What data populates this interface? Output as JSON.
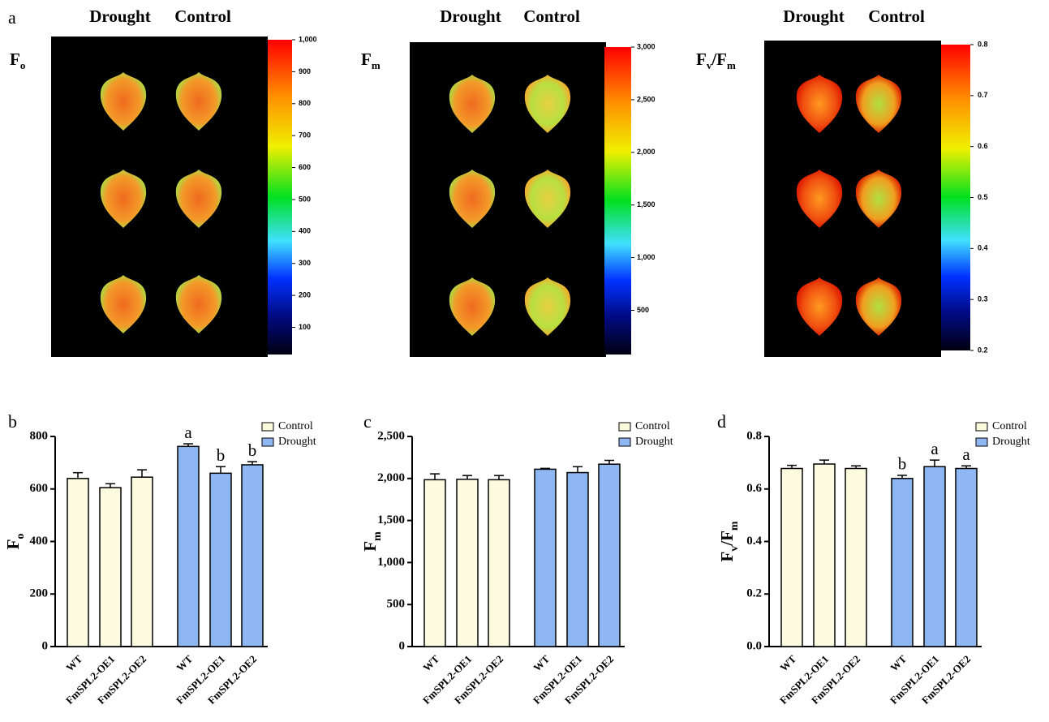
{
  "panel_label": "a",
  "images": [
    {
      "label": [
        "F",
        "o"
      ],
      "columns": [
        "Drought",
        "Control"
      ],
      "colorbar": {
        "lim": [
          15,
          1000
        ],
        "ticks": [
          100,
          200,
          300,
          400,
          500,
          600,
          700,
          800,
          900,
          {
            "value": 1000,
            "label": "1,000"
          }
        ]
      }
    },
    {
      "label": [
        "F",
        "m"
      ],
      "columns": [
        "Drought",
        "Control"
      ],
      "colorbar": {
        "lim": [
          80,
          3000
        ],
        "ticks": [
          500,
          {
            "value": 1000,
            "label": "1,000"
          },
          {
            "value": 1500,
            "label": "1,500"
          },
          {
            "value": 2000,
            "label": "2,000"
          },
          {
            "value": 2500,
            "label": "2,500"
          },
          {
            "value": 3000,
            "label": "3,000"
          }
        ]
      }
    },
    {
      "label": [
        "F",
        "v",
        "/F",
        "m"
      ],
      "columns": [
        "Drought",
        "Control"
      ],
      "colorbar": {
        "lim": [
          0.2,
          0.8
        ],
        "ticks": [
          0.2,
          0.3,
          0.4,
          0.5,
          0.6,
          0.7,
          0.8
        ]
      }
    }
  ],
  "chart_data": [
    {
      "type": "bar",
      "panel_label": "b",
      "ylabel": [
        "F",
        "o"
      ],
      "categories": [
        "WT",
        "FmSPL2-OE1",
        "FmSPL2-OE2"
      ],
      "ylim": [
        0,
        800
      ],
      "yticks": [
        0,
        200,
        400,
        600,
        800
      ],
      "series": [
        {
          "name": "Control",
          "color": "#fdfbdf",
          "values": [
            640,
            605,
            645
          ],
          "error": [
            22,
            15,
            28
          ]
        },
        {
          "name": "Drought",
          "color": "#8fb7f2",
          "values": [
            762,
            660,
            692
          ],
          "error": [
            10,
            25,
            12
          ],
          "letters": [
            "a",
            "b",
            "b"
          ]
        }
      ]
    },
    {
      "type": "bar",
      "panel_label": "c",
      "ylabel": [
        "F",
        "m"
      ],
      "categories": [
        "WT",
        "FmSPL2-OE1",
        "FmSPL2-OE2"
      ],
      "ylim": [
        0,
        2500
      ],
      "yticks": [
        0,
        500,
        {
          "value": 1000,
          "label": "1,000"
        },
        {
          "value": 1500,
          "label": "1,500"
        },
        {
          "value": 2000,
          "label": "2,000"
        },
        {
          "value": 2500,
          "label": "2,500"
        }
      ],
      "series": [
        {
          "name": "Control",
          "color": "#fdfbdf",
          "values": [
            1985,
            1990,
            1985
          ],
          "error": [
            70,
            45,
            50
          ]
        },
        {
          "name": "Drought",
          "color": "#8fb7f2",
          "values": [
            2110,
            2070,
            2170
          ],
          "error": [
            10,
            70,
            45
          ]
        }
      ]
    },
    {
      "type": "bar",
      "panel_label": "d",
      "ylabel": [
        "F",
        "v",
        "/F",
        "m"
      ],
      "categories": [
        "WT",
        "FmSPL2-OE1",
        "FmSPL2-OE2"
      ],
      "ylim": [
        0,
        0.8
      ],
      "yticks": [
        {
          "value": 0,
          "label": "0.0"
        },
        0.2,
        0.4,
        0.6,
        0.8
      ],
      "series": [
        {
          "name": "Control",
          "color": "#fdfbdf",
          "values": [
            0.678,
            0.695,
            0.678
          ],
          "error": [
            0.012,
            0.015,
            0.01
          ]
        },
        {
          "name": "Drought",
          "color": "#8fb7f2",
          "values": [
            0.64,
            0.685,
            0.678
          ],
          "error": [
            0.012,
            0.025,
            0.01
          ],
          "letters": [
            "b",
            "a",
            "a"
          ]
        }
      ]
    }
  ]
}
